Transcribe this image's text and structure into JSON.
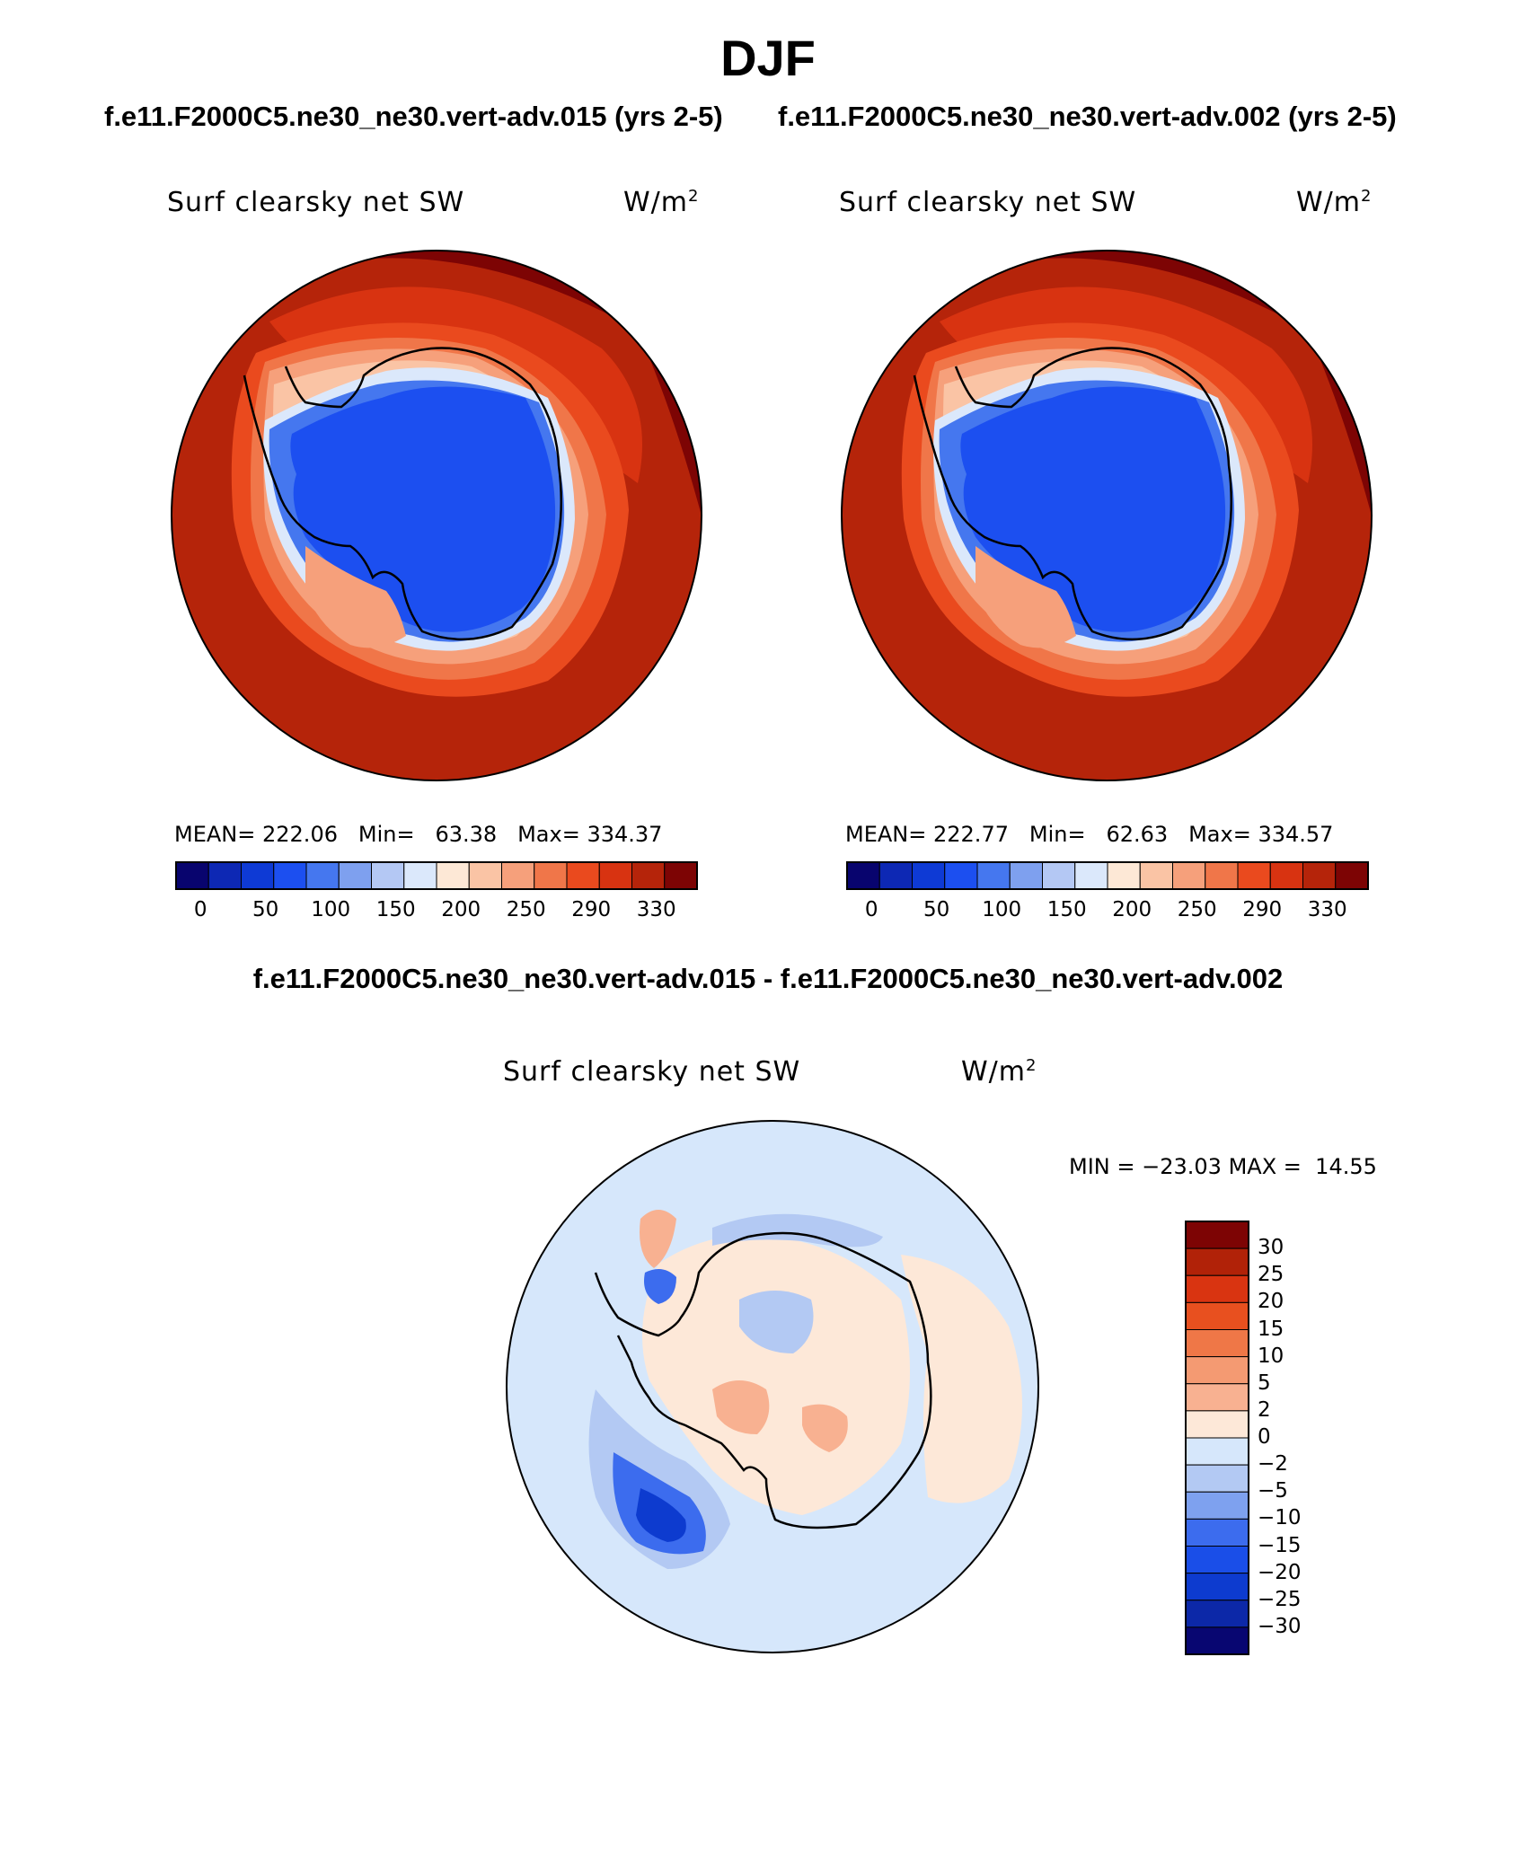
{
  "title": "DJF",
  "case_titles": {
    "left": "f.e11.F2000C5.ne30_ne30.vert-adv.015 (yrs 2-5)",
    "right": "f.e11.F2000C5.ne30_ne30.vert-adv.002 (yrs 2-5)"
  },
  "diff_title": "f.e11.F2000C5.ne30_ne30.vert-adv.015 - f.e11.F2000C5.ne30_ne30.vert-adv.002",
  "variable": "Surf clearsky net SW",
  "units": "W/m",
  "units_exp": "2",
  "panels": [
    {
      "mean_label": "MEAN=",
      "mean": "222.06",
      "min_label": "Min=",
      "min": "63.38",
      "max_label": "Max=",
      "max": "334.37"
    },
    {
      "mean_label": "MEAN=",
      "mean": "222.77",
      "min_label": "Min=",
      "min": "62.63",
      "max_label": "Max=",
      "max": "334.57"
    }
  ],
  "diff_stats": {
    "min_label": "MIN =",
    "min": "−23.03",
    "max_label": "MAX =",
    "max": "14.55"
  },
  "colorbar_abs": {
    "colors": [
      "#08046e",
      "#0d28b4",
      "#0e3ad5",
      "#1c4ff0",
      "#4577ef",
      "#7ea0ef",
      "#b4c8f4",
      "#dbe8fb",
      "#fde8d6",
      "#fac4a5",
      "#f6a07b",
      "#f07649",
      "#ea4a1e",
      "#d83311",
      "#b5240a",
      "#7d0404"
    ],
    "tick_labels": [
      "0",
      "50",
      "100",
      "150",
      "200",
      "250",
      "290",
      "330"
    ]
  },
  "colorbar_diff": {
    "colors": [
      "#080671",
      "#0c28a8",
      "#0d3bcf",
      "#1a4ee8",
      "#3c6cee",
      "#7ea1ef",
      "#b3c9f3",
      "#d6e7fb",
      "#fde8d8",
      "#f8b191",
      "#f49a72",
      "#ef7747",
      "#e8501f",
      "#d93411",
      "#b12208",
      "#7d0404"
    ],
    "tick_labels": [
      "−30",
      "−25",
      "−20",
      "−15",
      "−10",
      "−5",
      "−2",
      "0",
      "2",
      "5",
      "10",
      "15",
      "20",
      "25",
      "30"
    ]
  },
  "map_colors": {
    "ocean_far": "#b5240a",
    "ocean_mid": "#d83311",
    "ocean_ring1": "#ea4a1e",
    "ocean_ring2": "#f07649",
    "ocean_ring3": "#f6a07b",
    "ocean_ring4": "#fac4a5",
    "ice_edge": "#dbe8fb",
    "land_light": "#4577ef",
    "land_main": "#1c4ff0",
    "corner_dark": "#7d0404",
    "diff_bg": "#d6e7fb",
    "diff_pos": "#fde8d8",
    "diff_pos2": "#f8b191",
    "diff_neg": "#b3c9f3",
    "diff_neg2": "#3c6cee",
    "diff_neg3": "#0d3bcf"
  }
}
